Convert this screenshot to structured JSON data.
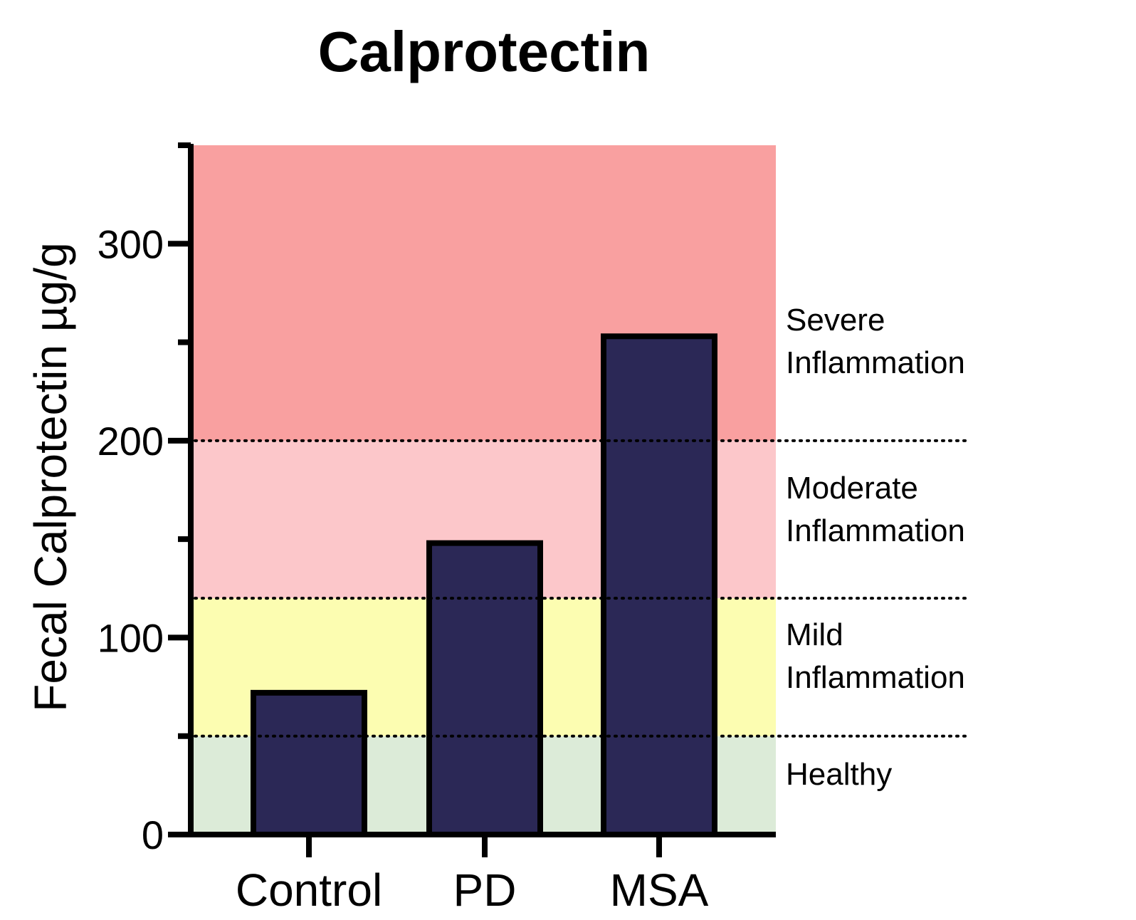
{
  "chart_data": {
    "type": "bar",
    "title": "Calprotectin",
    "xlabel": "",
    "ylabel": "Fecal Calprotectin µg/g",
    "categories": [
      "Control",
      "PD",
      "MSA"
    ],
    "values": [
      72,
      148,
      253
    ],
    "ylim": [
      0,
      350
    ],
    "yticks_major": [
      0,
      100,
      200,
      300
    ],
    "yticks_minor": [
      50,
      150,
      250
    ],
    "bar_color": "#2b2856",
    "bar_edge_color": "#000000",
    "zones": [
      {
        "name": "healthy",
        "label_lines": [
          "Healthy"
        ],
        "from": 0,
        "to": 50,
        "color": "#dcebd8"
      },
      {
        "name": "mild",
        "label_lines": [
          "Mild",
          "Inflammation"
        ],
        "from": 50,
        "to": 120,
        "color": "#fcfdb1"
      },
      {
        "name": "moderate",
        "label_lines": [
          "Moderate",
          "Inflammation"
        ],
        "from": 120,
        "to": 200,
        "color": "#fcc7ca"
      },
      {
        "name": "severe",
        "label_lines": [
          "Severe",
          "Inflammation"
        ],
        "from": 200,
        "to": 350,
        "color": "#f9a0a0"
      }
    ],
    "thresholds": [
      50,
      120,
      200
    ]
  }
}
